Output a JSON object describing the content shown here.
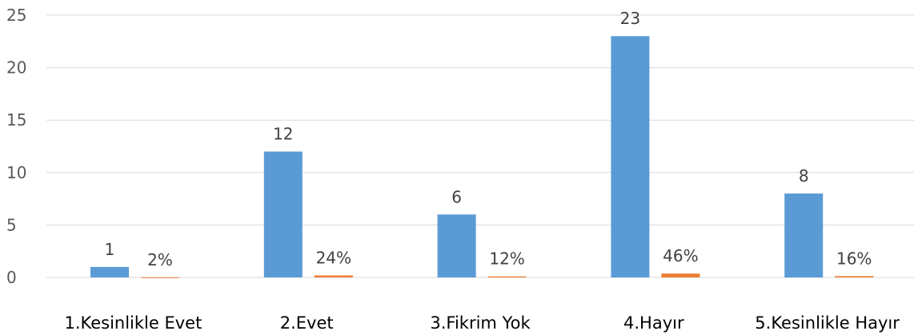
{
  "chart_data": {
    "type": "bar",
    "categories": [
      "1.Kesinlikle Evet",
      "2.Evet",
      "3.Fikrim Yok",
      "4.Hayır",
      "5.Kesinlikle Hayır"
    ],
    "series": [
      {
        "values": [
          1,
          12,
          6,
          23,
          8
        ],
        "labels": [
          "1",
          "12",
          "6",
          "23",
          "8"
        ],
        "color": "#5b9bd5"
      },
      {
        "values": [
          0.02,
          0.24,
          0.12,
          0.46,
          0.16
        ],
        "labels": [
          "2%",
          "24%",
          "12%",
          "46%",
          "16%"
        ],
        "color": "#ed7d31"
      }
    ],
    "yticks": [
      "0",
      "5",
      "10",
      "15",
      "20",
      "25"
    ],
    "ylim": [
      0,
      25
    ],
    "grid": true,
    "legend": "none"
  }
}
